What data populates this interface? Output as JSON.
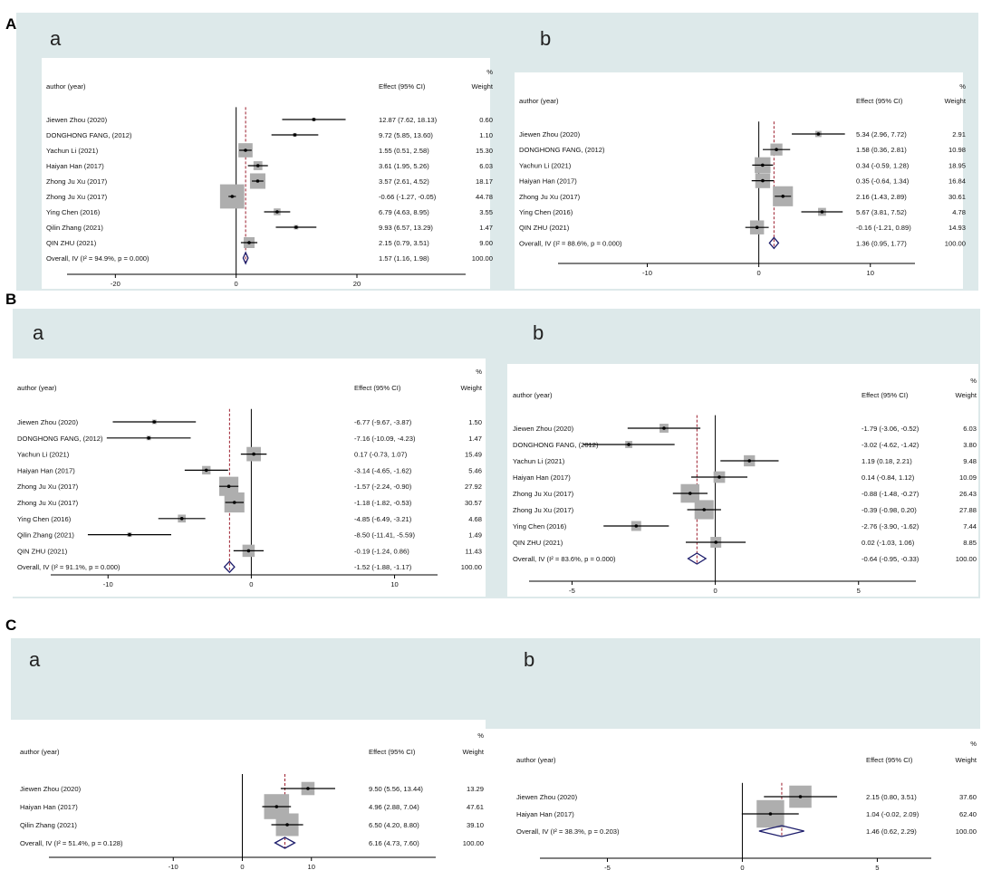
{
  "sections": [
    "A",
    "B",
    "C"
  ],
  "colors": {
    "band": "#dde9ea",
    "box": "#aeaeae",
    "line": "#000000",
    "diamond": "#1c1c6b",
    "dash": "#9b1c2c"
  },
  "labels": {
    "percent": "%",
    "author": "author (year)",
    "effect": "Effect (95% CI)",
    "weight": "Weight"
  },
  "chart_data": [
    {
      "id": "A-a",
      "panel": "a",
      "type": "forest",
      "xlim": [
        -28,
        38
      ],
      "ticks": [
        -20,
        0,
        20
      ],
      "overall_line": 1.57,
      "studies": [
        {
          "label": "Jiewen Zhou (2020)",
          "est": 12.87,
          "lo": 7.62,
          "hi": 18.13,
          "ci": "12.87 (7.62, 18.13)",
          "weight": "0.60",
          "w": 0.6
        },
        {
          "label": "DONGHONG FANG, (2012)",
          "est": 9.72,
          "lo": 5.85,
          "hi": 13.6,
          "ci": "9.72 (5.85, 13.60)",
          "weight": "1.10",
          "w": 1.1
        },
        {
          "label": "Yachun Li (2021)",
          "est": 1.55,
          "lo": 0.51,
          "hi": 2.58,
          "ci": "1.55 (0.51, 2.58)",
          "weight": "15.30",
          "w": 15.3
        },
        {
          "label": "Haiyan Han (2017)",
          "est": 3.61,
          "lo": 1.95,
          "hi": 5.26,
          "ci": "3.61 (1.95, 5.26)",
          "weight": "6.03",
          "w": 6.03
        },
        {
          "label": "Zhong Ju Xu (2017)",
          "est": 3.57,
          "lo": 2.61,
          "hi": 4.52,
          "ci": "3.57 (2.61, 4.52)",
          "weight": "18.17",
          "w": 18.17
        },
        {
          "label": "Zhong Ju Xu (2017)",
          "est": -0.66,
          "lo": -1.27,
          "hi": -0.05,
          "ci": "-0.66 (-1.27, -0.05)",
          "weight": "44.78",
          "w": 44.78
        },
        {
          "label": "Ying Chen (2016)",
          "est": 6.79,
          "lo": 4.63,
          "hi": 8.95,
          "ci": "6.79 (4.63, 8.95)",
          "weight": "3.55",
          "w": 3.55
        },
        {
          "label": "Qilin Zhang (2021)",
          "est": 9.93,
          "lo": 6.57,
          "hi": 13.29,
          "ci": "9.93 (6.57, 13.29)",
          "weight": "1.47",
          "w": 1.47
        },
        {
          "label": "QIN ZHU (2021)",
          "est": 2.15,
          "lo": 0.79,
          "hi": 3.51,
          "ci": "2.15 (0.79, 3.51)",
          "weight": "9.00",
          "w": 9.0
        }
      ],
      "overall": {
        "label": "Overall, IV (I² = 94.9%, p = 0.000)",
        "est": 1.57,
        "lo": 1.16,
        "hi": 1.98,
        "ci": "1.57 (1.16, 1.98)",
        "weight": "100.00"
      }
    },
    {
      "id": "A-b",
      "panel": "b",
      "type": "forest",
      "xlim": [
        -18,
        14
      ],
      "ticks": [
        -10,
        0,
        10
      ],
      "overall_line": 1.36,
      "studies": [
        {
          "label": "Jiewen Zhou (2020)",
          "est": 5.34,
          "lo": 2.96,
          "hi": 7.72,
          "ci": "5.34 (2.96, 7.72)",
          "weight": "2.91",
          "w": 2.91
        },
        {
          "label": "DONGHONG FANG, (2012)",
          "est": 1.58,
          "lo": 0.36,
          "hi": 2.81,
          "ci": "1.58 (0.36, 2.81)",
          "weight": "10.98",
          "w": 10.98
        },
        {
          "label": "Yachun Li (2021)",
          "est": 0.34,
          "lo": -0.59,
          "hi": 1.28,
          "ci": "0.34 (-0.59, 1.28)",
          "weight": "18.95",
          "w": 18.95
        },
        {
          "label": "Haiyan Han (2017)",
          "est": 0.35,
          "lo": -0.64,
          "hi": 1.34,
          "ci": "0.35 (-0.64, 1.34)",
          "weight": "16.84",
          "w": 16.84
        },
        {
          "label": "Zhong Ju Xu (2017)",
          "est": 2.16,
          "lo": 1.43,
          "hi": 2.89,
          "ci": "2.16 (1.43, 2.89)",
          "weight": "30.61",
          "w": 30.61
        },
        {
          "label": "Ying Chen (2016)",
          "est": 5.67,
          "lo": 3.81,
          "hi": 7.52,
          "ci": "5.67 (3.81, 7.52)",
          "weight": "4.78",
          "w": 4.78
        },
        {
          "label": "QIN ZHU (2021)",
          "est": -0.16,
          "lo": -1.21,
          "hi": 0.89,
          "ci": "-0.16 (-1.21, 0.89)",
          "weight": "14.93",
          "w": 14.93
        }
      ],
      "overall": {
        "label": "Overall, IV (I² = 88.6%, p = 0.000)",
        "est": 1.36,
        "lo": 0.95,
        "hi": 1.77,
        "ci": "1.36 (0.95, 1.77)",
        "weight": "100.00"
      }
    },
    {
      "id": "B-a",
      "panel": "a",
      "type": "forest",
      "xlim": [
        -14,
        13
      ],
      "ticks": [
        -10,
        0,
        10
      ],
      "overall_line": -1.52,
      "studies": [
        {
          "label": "Jiewen Zhou (2020)",
          "est": -6.77,
          "lo": -9.67,
          "hi": -3.87,
          "ci": "-6.77 (-9.67, -3.87)",
          "weight": "1.50",
          "w": 1.5
        },
        {
          "label": "DONGHONG FANG, (2012)",
          "est": -7.16,
          "lo": -10.09,
          "hi": -4.23,
          "ci": "-7.16 (-10.09, -4.23)",
          "weight": "1.47",
          "w": 1.47
        },
        {
          "label": "Yachun Li (2021)",
          "est": 0.17,
          "lo": -0.73,
          "hi": 1.07,
          "ci": "0.17 (-0.73, 1.07)",
          "weight": "15.49",
          "w": 15.49
        },
        {
          "label": "Haiyan Han (2017)",
          "est": -3.14,
          "lo": -4.65,
          "hi": -1.62,
          "ci": "-3.14 (-4.65, -1.62)",
          "weight": "5.46",
          "w": 5.46
        },
        {
          "label": "Zhong Ju Xu (2017)",
          "est": -1.57,
          "lo": -2.24,
          "hi": -0.9,
          "ci": "-1.57 (-2.24, -0.90)",
          "weight": "27.92",
          "w": 27.92
        },
        {
          "label": "Zhong Ju Xu (2017)",
          "est": -1.18,
          "lo": -1.82,
          "hi": -0.53,
          "ci": "-1.18 (-1.82, -0.53)",
          "weight": "30.57",
          "w": 30.57
        },
        {
          "label": "Ying Chen (2016)",
          "est": -4.85,
          "lo": -6.49,
          "hi": -3.21,
          "ci": "-4.85 (-6.49, -3.21)",
          "weight": "4.68",
          "w": 4.68
        },
        {
          "label": "Qilin Zhang (2021)",
          "est": -8.5,
          "lo": -11.41,
          "hi": -5.59,
          "ci": "-8.50 (-11.41, -5.59)",
          "weight": "1.49",
          "w": 1.49
        },
        {
          "label": "QIN ZHU (2021)",
          "est": -0.19,
          "lo": -1.24,
          "hi": 0.86,
          "ci": "-0.19 (-1.24, 0.86)",
          "weight": "11.43",
          "w": 11.43
        }
      ],
      "overall": {
        "label": "Overall, IV (I² = 91.1%, p = 0.000)",
        "est": -1.52,
        "lo": -1.88,
        "hi": -1.17,
        "ci": "-1.52 (-1.88, -1.17)",
        "weight": "100.00"
      }
    },
    {
      "id": "B-b",
      "panel": "b",
      "type": "forest",
      "xlim": [
        -6.5,
        7
      ],
      "ticks": [
        -5,
        0,
        5
      ],
      "overall_line": -0.64,
      "studies": [
        {
          "label": "Jiewen Zhou (2020)",
          "est": -1.79,
          "lo": -3.06,
          "hi": -0.52,
          "ci": "-1.79 (-3.06, -0.52)",
          "weight": "6.03",
          "w": 6.03
        },
        {
          "label": "DONGHONG FANG, (2012)",
          "est": -3.02,
          "lo": -4.62,
          "hi": -1.42,
          "ci": "-3.02 (-4.62, -1.42)",
          "weight": "3.80",
          "w": 3.8
        },
        {
          "label": "Yachun Li (2021)",
          "est": 1.19,
          "lo": 0.18,
          "hi": 2.21,
          "ci": "1.19 (0.18, 2.21)",
          "weight": "9.48",
          "w": 9.48
        },
        {
          "label": "Haiyan Han (2017)",
          "est": 0.14,
          "lo": -0.84,
          "hi": 1.12,
          "ci": "0.14 (-0.84, 1.12)",
          "weight": "10.09",
          "w": 10.09
        },
        {
          "label": "Zhong Ju Xu (2017)",
          "est": -0.88,
          "lo": -1.48,
          "hi": -0.27,
          "ci": "-0.88 (-1.48, -0.27)",
          "weight": "26.43",
          "w": 26.43
        },
        {
          "label": "Zhong Ju Xu (2017)",
          "est": -0.39,
          "lo": -0.98,
          "hi": 0.2,
          "ci": "-0.39 (-0.98, 0.20)",
          "weight": "27.88",
          "w": 27.88
        },
        {
          "label": "Ying Chen (2016)",
          "est": -2.76,
          "lo": -3.9,
          "hi": -1.62,
          "ci": "-2.76 (-3.90, -1.62)",
          "weight": "7.44",
          "w": 7.44
        },
        {
          "label": "QIN ZHU (2021)",
          "est": 0.02,
          "lo": -1.03,
          "hi": 1.06,
          "ci": "0.02 (-1.03, 1.06)",
          "weight": "8.85",
          "w": 8.85
        }
      ],
      "overall": {
        "label": "Overall, IV (I² = 83.6%, p = 0.000)",
        "est": -0.64,
        "lo": -0.95,
        "hi": -0.33,
        "ci": "-0.64 (-0.95, -0.33)",
        "weight": "100.00"
      }
    },
    {
      "id": "C-a",
      "panel": "a",
      "type": "forest",
      "xlim": [
        -28,
        28
      ],
      "ticks": [
        -10,
        0,
        10
      ],
      "overall_line": 6.16,
      "studies": [
        {
          "label": "Jiewen Zhou (2020)",
          "est": 9.5,
          "lo": 5.56,
          "hi": 13.44,
          "ci": "9.50 (5.56, 13.44)",
          "weight": "13.29",
          "w": 13.29
        },
        {
          "label": "Haiyan Han (2017)",
          "est": 4.96,
          "lo": 2.88,
          "hi": 7.04,
          "ci": "4.96 (2.88, 7.04)",
          "weight": "47.61",
          "w": 47.61
        },
        {
          "label": "Qilin Zhang (2021)",
          "est": 6.5,
          "lo": 4.2,
          "hi": 8.8,
          "ci": "6.50 (4.20, 8.80)",
          "weight": "39.10",
          "w": 39.1
        }
      ],
      "overall": {
        "label": "Overall, IV (I² = 51.4%, p = 0.128)",
        "est": 6.16,
        "lo": 4.73,
        "hi": 7.6,
        "ci": "6.16 (4.73, 7.60)",
        "weight": "100.00"
      }
    },
    {
      "id": "C-b",
      "panel": "b",
      "type": "forest",
      "xlim": [
        -7.5,
        7
      ],
      "ticks": [
        -5,
        0,
        5
      ],
      "overall_line": 1.46,
      "studies": [
        {
          "label": "Jiewen Zhou (2020)",
          "est": 2.15,
          "lo": 0.8,
          "hi": 3.51,
          "ci": "2.15 (0.80, 3.51)",
          "weight": "37.60",
          "w": 37.6
        },
        {
          "label": "Haiyan Han (2017)",
          "est": 1.04,
          "lo": -0.02,
          "hi": 2.09,
          "ci": "1.04 (-0.02, 2.09)",
          "weight": "62.40",
          "w": 62.4
        }
      ],
      "overall": {
        "label": "Overall, IV (I² = 38.3%, p = 0.203)",
        "est": 1.46,
        "lo": 0.62,
        "hi": 2.29,
        "ci": "1.46 (0.62, 2.29)",
        "weight": "100.00"
      }
    }
  ]
}
